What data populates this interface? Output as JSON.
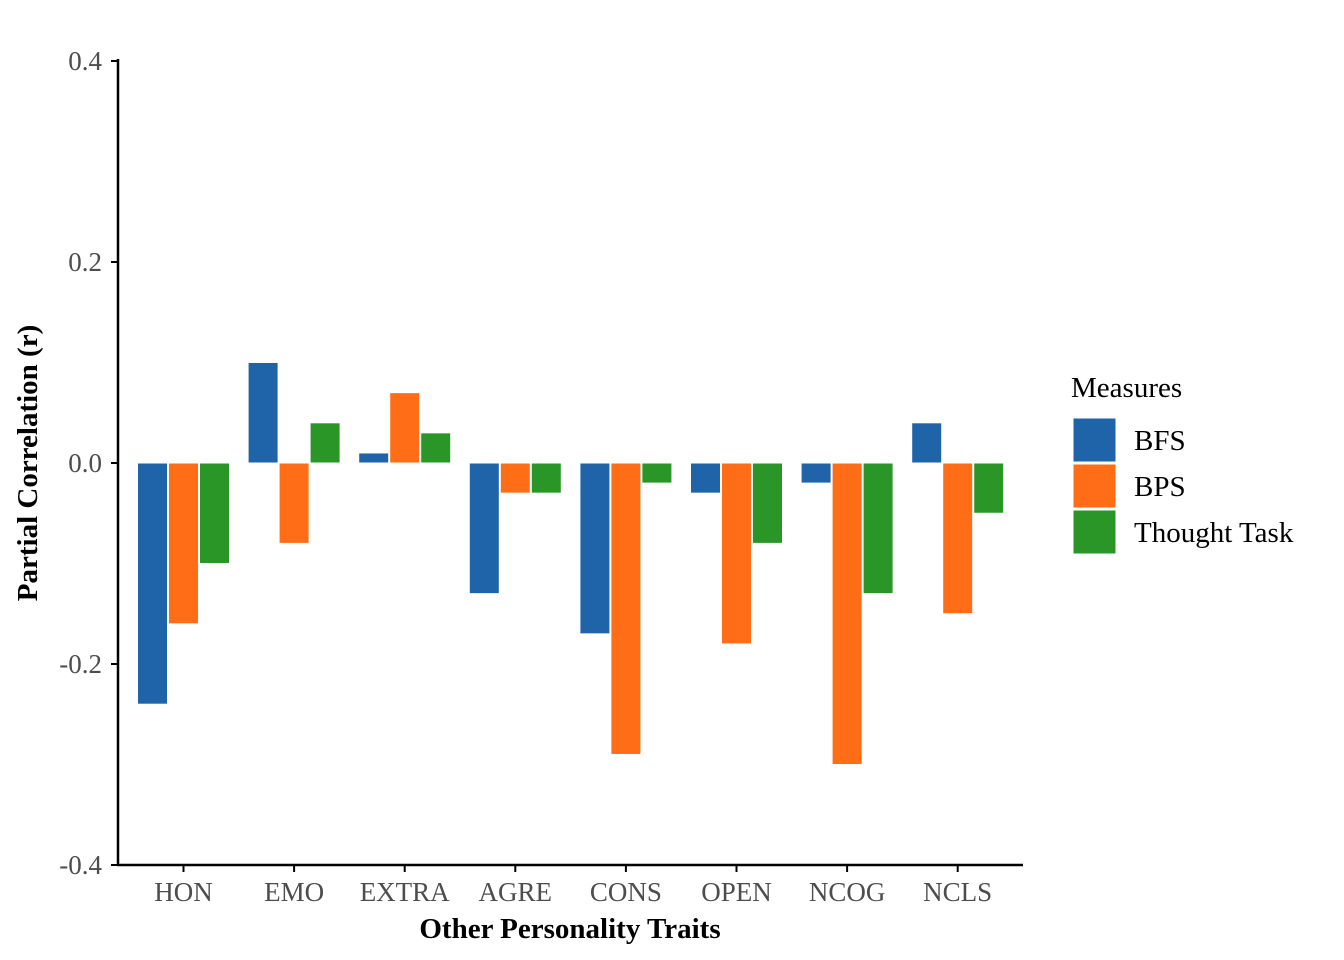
{
  "chart_data": {
    "type": "bar",
    "xlabel": "Other Personality Traits",
    "ylabel": "Partial Correlation (r)",
    "ylim": [
      -0.4,
      0.4
    ],
    "yticks": [
      -0.4,
      -0.2,
      0.0,
      0.2,
      0.4
    ],
    "ytick_labels": [
      "-0.4",
      "-0.2",
      "0.0",
      "0.2",
      "0.4"
    ],
    "grid": false,
    "categories": [
      "HON",
      "EMO",
      "EXTRA",
      "AGRE",
      "CONS",
      "OPEN",
      "NCOG",
      "NCLS"
    ],
    "series": [
      {
        "name": "BFS",
        "color": "#1f63a8",
        "values": [
          -0.24,
          0.1,
          0.01,
          -0.13,
          -0.17,
          -0.03,
          -0.02,
          0.04
        ]
      },
      {
        "name": "BPS",
        "color": "#ff6d17",
        "values": [
          -0.16,
          -0.08,
          0.07,
          -0.03,
          -0.29,
          -0.18,
          -0.3,
          -0.15
        ]
      },
      {
        "name": "Thought Task",
        "color": "#2a9628",
        "values": [
          -0.1,
          0.04,
          0.03,
          -0.03,
          -0.02,
          -0.08,
          -0.13,
          -0.05
        ]
      }
    ],
    "legend": {
      "title": "Measures",
      "position": "right"
    }
  }
}
